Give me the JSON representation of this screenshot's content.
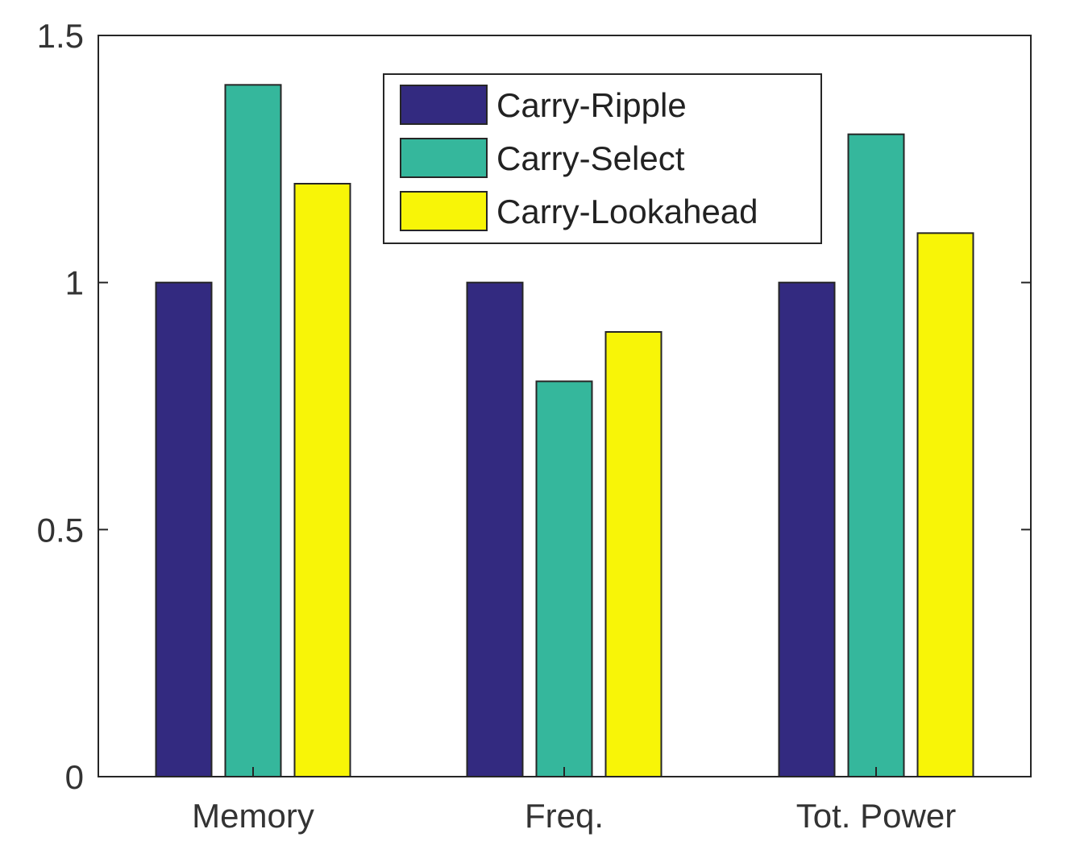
{
  "chart_data": {
    "type": "bar",
    "title": "",
    "xlabel": "",
    "ylabel": "",
    "categories": [
      "Memory",
      "Freq.",
      "Tot. Power"
    ],
    "series": [
      {
        "name": "Carry-Ripple",
        "values": [
          1.0,
          1.0,
          1.0
        ],
        "color": "#332a80"
      },
      {
        "name": "Carry-Select",
        "values": [
          1.4,
          0.8,
          1.3
        ],
        "color": "#35b79c"
      },
      {
        "name": "Carry-Lookahead",
        "values": [
          1.2,
          0.9,
          1.1
        ],
        "color": "#f8f507"
      }
    ],
    "ylim": [
      0,
      1.5
    ],
    "yticks": [
      "0",
      "0.5",
      "1",
      "1.5"
    ],
    "grid": false,
    "legend_position": "top-center"
  }
}
